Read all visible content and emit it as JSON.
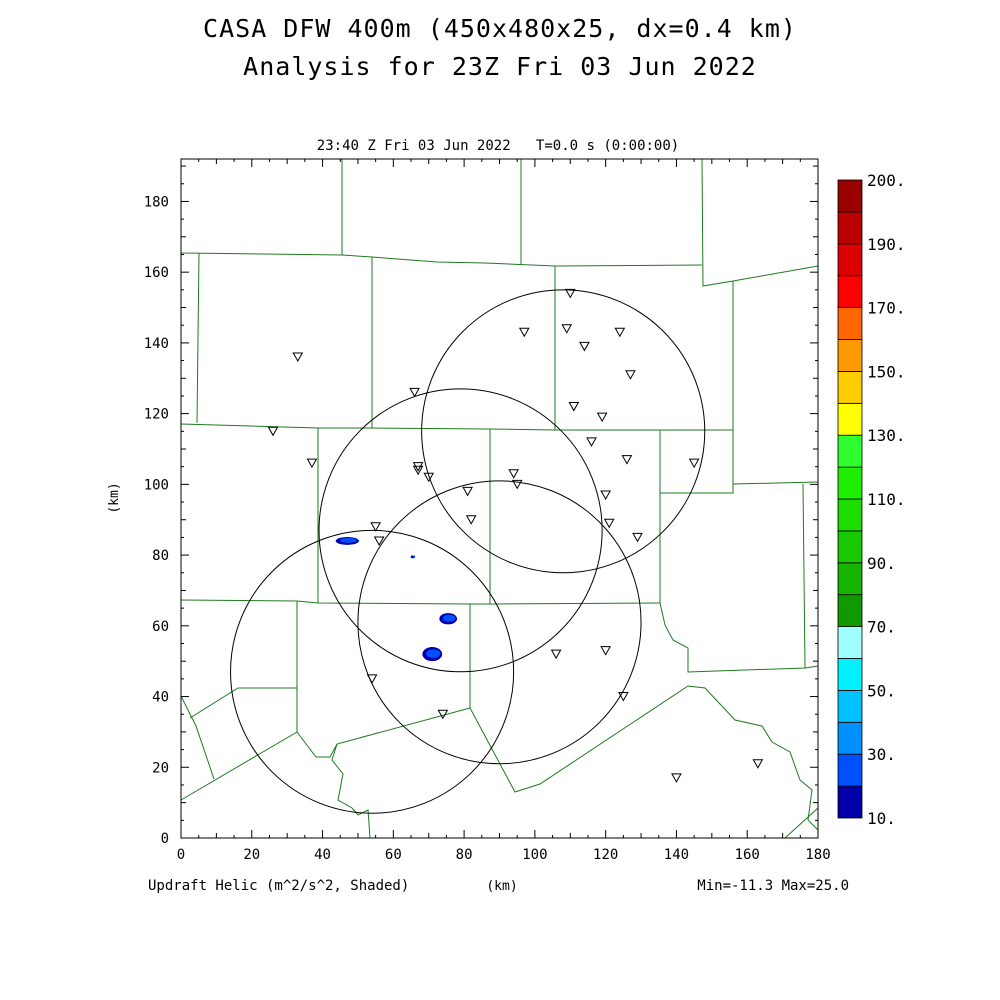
{
  "title_line1": "CASA DFW 400m (450x480x25, dx=0.4 km)",
  "title_line2": "Analysis for 23Z Fri 03 Jun 2022",
  "subtitle": "23:40 Z Fri 03 Jun 2022   T=0.0 s (0:00:00)",
  "footer_left": "Updraft Helic (m^2/s^2, Shaded)",
  "footer_right": "Min=-11.3 Max=25.0",
  "chart_data": {
    "type": "heatmap",
    "xlabel": "(km)",
    "ylabel": "(km)",
    "xlim": [
      0,
      180
    ],
    "ylim": [
      0,
      192
    ],
    "xticks": [
      0,
      20,
      40,
      60,
      80,
      100,
      120,
      140,
      160,
      180
    ],
    "yticks": [
      0,
      20,
      40,
      60,
      80,
      100,
      120,
      140,
      160,
      180
    ],
    "colorbar": {
      "labels": [
        "10.",
        "30.",
        "50.",
        "70.",
        "90.",
        "110.",
        "130.",
        "150.",
        "170.",
        "190.",
        "200."
      ],
      "colors": [
        "#0000aa",
        "#0050ff",
        "#0090ff",
        "#00c0ff",
        "#00f0ff",
        "#a0ffff",
        "#109a00",
        "#14b400",
        "#18c800",
        "#1cdc00",
        "#20f000",
        "#30ff30",
        "#ffff00",
        "#ffcc00",
        "#ff9900",
        "#ff6600",
        "#ff0000",
        "#dd0000",
        "#bb0000",
        "#990000"
      ]
    },
    "radar_circles": [
      {
        "cx": 108,
        "cy": 115,
        "r": 40
      },
      {
        "cx": 79,
        "cy": 87,
        "r": 40
      },
      {
        "cx": 90,
        "cy": 61,
        "r": 40
      },
      {
        "cx": 54,
        "cy": 47,
        "r": 40
      }
    ],
    "stations": [
      [
        110,
        154
      ],
      [
        97,
        143
      ],
      [
        109,
        144
      ],
      [
        124,
        143
      ],
      [
        114,
        139
      ],
      [
        33,
        136
      ],
      [
        127,
        131
      ],
      [
        66,
        126
      ],
      [
        111,
        122
      ],
      [
        119,
        119
      ],
      [
        26,
        115
      ],
      [
        116,
        112
      ],
      [
        126,
        107
      ],
      [
        37,
        106
      ],
      [
        145,
        106
      ],
      [
        67,
        105
      ],
      [
        67,
        104
      ],
      [
        70,
        102
      ],
      [
        94,
        103
      ],
      [
        95,
        100
      ],
      [
        81,
        98
      ],
      [
        120,
        97
      ],
      [
        55,
        88
      ],
      [
        82,
        90
      ],
      [
        121,
        89
      ],
      [
        129,
        85
      ],
      [
        56,
        84
      ],
      [
        106,
        52
      ],
      [
        120,
        53
      ],
      [
        54,
        45
      ],
      [
        125,
        40
      ],
      [
        74,
        35
      ],
      [
        140,
        17
      ],
      [
        163,
        21
      ]
    ],
    "shaded_regions": [
      {
        "cx": 47,
        "cy": 84,
        "rx": 3.3,
        "ry": 1.1,
        "value": 20
      },
      {
        "cx": 75.5,
        "cy": 62,
        "rx": 2.5,
        "ry": 1.6,
        "value": 25
      },
      {
        "cx": 71,
        "cy": 52,
        "rx": 2.8,
        "ry": 2.0,
        "value": 25
      },
      {
        "cx": 65.5,
        "cy": 79.5,
        "rx": 0.6,
        "ry": 0.4,
        "value": 15
      }
    ]
  }
}
